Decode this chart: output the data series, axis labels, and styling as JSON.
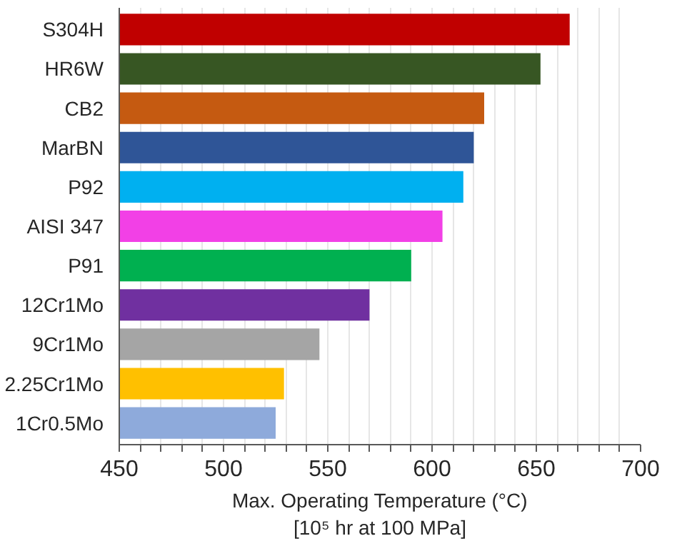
{
  "chart_data": {
    "type": "bar",
    "orientation": "horizontal",
    "categories": [
      "S304H",
      "HR6W",
      "CB2",
      "MarBN",
      "P92",
      "AISI 347",
      "P91",
      "12Cr1Mo",
      "9Cr1Mo",
      "2.25Cr1Mo",
      "1Cr0.5Mo"
    ],
    "values": [
      666,
      652,
      625,
      620,
      615,
      605,
      590,
      570,
      546,
      529,
      525
    ],
    "colors": [
      "#c00000",
      "#375623",
      "#c55a11",
      "#2f5597",
      "#00b0f0",
      "#f240e6",
      "#00b050",
      "#7030a0",
      "#a5a5a5",
      "#ffc000",
      "#8eaadb"
    ],
    "xlim": [
      450,
      700
    ],
    "xticks": [
      450,
      {
        "value": 460,
        "label": null
      },
      {
        "value": 470,
        "label": null
      },
      {
        "value": 480,
        "label": null
      },
      {
        "value": 490,
        "label": null
      },
      500,
      {
        "value": 510,
        "label": null
      },
      {
        "value": 520,
        "label": null
      },
      {
        "value": 530,
        "label": null
      },
      {
        "value": 540,
        "label": null
      },
      550,
      {
        "value": 560,
        "label": null
      },
      {
        "value": 570,
        "label": null
      },
      {
        "value": 580,
        "label": null
      },
      {
        "value": 590,
        "label": null
      },
      600,
      {
        "value": 610,
        "label": null
      },
      {
        "value": 620,
        "label": null
      },
      {
        "value": 630,
        "label": null
      },
      {
        "value": 640,
        "label": null
      },
      650,
      {
        "value": 660,
        "label": null
      },
      {
        "value": 670,
        "label": null
      },
      {
        "value": 680,
        "label": null
      },
      {
        "value": 690,
        "label": null
      },
      700
    ],
    "xlabel": "Max. Operating Temperature (°C)\n[10⁵ hr at 100 MPa]",
    "grid": "x"
  }
}
